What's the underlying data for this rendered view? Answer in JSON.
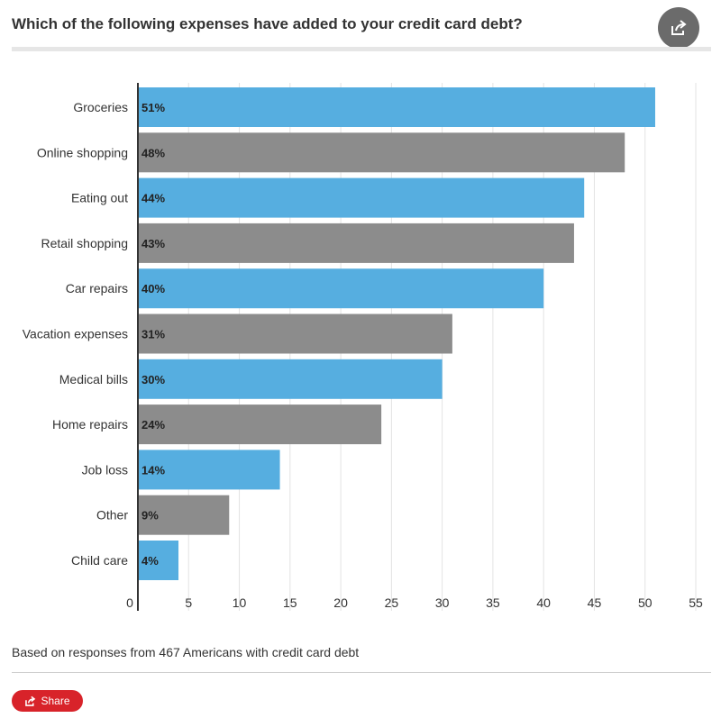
{
  "header": {
    "title": "Which of the following expenses have added to your credit card debt?",
    "share_icon": "share-icon"
  },
  "chart_data": {
    "type": "bar",
    "orientation": "horizontal",
    "categories": [
      "Groceries",
      "Online shopping",
      "Eating out",
      "Retail shopping",
      "Car repairs",
      "Vacation expenses",
      "Medical bills",
      "Home repairs",
      "Job loss",
      "Other",
      "Child care"
    ],
    "values": [
      51,
      48,
      44,
      43,
      40,
      31,
      30,
      24,
      14,
      9,
      4
    ],
    "data_labels": [
      "51%",
      "48%",
      "44%",
      "43%",
      "40%",
      "31%",
      "30%",
      "24%",
      "14%",
      "9%",
      "4%"
    ],
    "colors": [
      "#56aee0",
      "#8c8c8c"
    ],
    "xlim": [
      0,
      55
    ],
    "xticks": [
      0,
      5,
      10,
      15,
      20,
      25,
      30,
      35,
      40,
      45,
      50,
      55
    ],
    "grid": true,
    "title": "Which of the following expenses have added to your credit card debt?"
  },
  "footer": {
    "note": "Based on responses from 467 Americans with credit card debt",
    "share_label": "Share"
  }
}
